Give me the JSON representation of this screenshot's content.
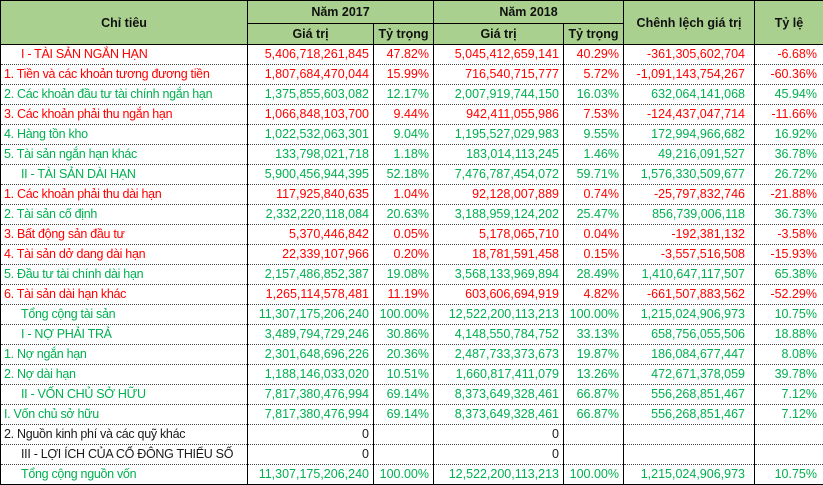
{
  "table": {
    "colors": {
      "red": "#ff0000",
      "green": "#00b050",
      "black": "#1a1a1a",
      "header_bg": "#a9d08e",
      "border": "#000000"
    },
    "header": {
      "col_label": "Chỉ tiêu",
      "group_2017": "Năm 2017",
      "group_2018": "Năm 2018",
      "subcols": [
        "Giá trị",
        "Tỷ trọng",
        "Giá trị",
        "Tỷ trọng"
      ],
      "col_diff": "Chênh lệch giá trị",
      "col_ratio": "Tỷ lệ"
    },
    "rows": [
      {
        "label": "I - TÀI SẢN NGẮN HẠN",
        "indent": true,
        "color": "red",
        "v2017": "5,406,718,261,845",
        "p2017": "47.82%",
        "v2018": "5,045,412,659,141",
        "p2018": "40.29%",
        "diff": "-361,305,602,704",
        "ratio": "-6.68%"
      },
      {
        "label": "1. Tiền và các khoản tương đương tiền",
        "indent": false,
        "color": "red",
        "v2017": "1,807,684,470,044",
        "p2017": "15.99%",
        "v2018": "716,540,715,777",
        "p2018": "5.72%",
        "diff": "-1,091,143,754,267",
        "ratio": "-60.36%"
      },
      {
        "label": "2. Các khoản đầu tư tài chính ngắn hạn",
        "indent": false,
        "color": "green",
        "v2017": "1,375,855,603,082",
        "p2017": "12.17%",
        "v2018": "2,007,919,744,150",
        "p2018": "16.03%",
        "diff": "632,064,141,068",
        "ratio": "45.94%"
      },
      {
        "label": "3. Các khoản phải thu ngắn hạn",
        "indent": false,
        "color": "red",
        "v2017": "1,066,848,103,700",
        "p2017": "9.44%",
        "v2018": "942,411,055,986",
        "p2018": "7.53%",
        "diff": "-124,437,047,714",
        "ratio": "-11.66%"
      },
      {
        "label": "4. Hàng tồn kho",
        "indent": false,
        "color": "green",
        "v2017": "1,022,532,063,301",
        "p2017": "9.04%",
        "v2018": "1,195,527,029,983",
        "p2018": "9.55%",
        "diff": "172,994,966,682",
        "ratio": "16.92%"
      },
      {
        "label": "5. Tài sản ngắn hạn khác",
        "indent": false,
        "color": "green",
        "v2017": "133,798,021,718",
        "p2017": "1.18%",
        "v2018": "183,014,113,245",
        "p2018": "1.46%",
        "diff": "49,216,091,527",
        "ratio": "36.78%"
      },
      {
        "label": "II - TÀI SẢN DÀI HẠN",
        "indent": true,
        "color": "green",
        "v2017": "5,900,456,944,395",
        "p2017": "52.18%",
        "v2018": "7,476,787,454,072",
        "p2018": "59.71%",
        "diff": "1,576,330,509,677",
        "ratio": "26.72%"
      },
      {
        "label": "1. Các khoản phải thu dài hạn",
        "indent": false,
        "color": "red",
        "v2017": "117,925,840,635",
        "p2017": "1.04%",
        "v2018": "92,128,007,889",
        "p2018": "0.74%",
        "diff": "-25,797,832,746",
        "ratio": "-21.88%"
      },
      {
        "label": "2. Tài sản cố định",
        "indent": false,
        "color": "green",
        "v2017": "2,332,220,118,084",
        "p2017": "20.63%",
        "v2018": "3,188,959,124,202",
        "p2018": "25.47%",
        "diff": "856,739,006,118",
        "ratio": "36.73%"
      },
      {
        "label": "3. Bất động sản đầu tư",
        "indent": false,
        "color": "red",
        "v2017": "5,370,446,842",
        "p2017": "0.05%",
        "v2018": "5,178,065,710",
        "p2018": "0.04%",
        "diff": "-192,381,132",
        "ratio": "-3.58%"
      },
      {
        "label": "4. Tài sản dở dang dài hạn",
        "indent": false,
        "color": "red",
        "v2017": "22,339,107,966",
        "p2017": "0.20%",
        "v2018": "18,781,591,458",
        "p2018": "0.15%",
        "diff": "-3,557,516,508",
        "ratio": "-15.93%"
      },
      {
        "label": "5. Đầu tư tài chính dài hạn",
        "indent": false,
        "color": "green",
        "v2017": "2,157,486,852,387",
        "p2017": "19.08%",
        "v2018": "3,568,133,969,894",
        "p2018": "28.49%",
        "diff": "1,410,647,117,507",
        "ratio": "65.38%"
      },
      {
        "label": "6. Tài sản dài hạn khác",
        "indent": false,
        "color": "red",
        "v2017": "1,265,114,578,481",
        "p2017": "11.19%",
        "v2018": "603,606,694,919",
        "p2018": "4.82%",
        "diff": "-661,507,883,562",
        "ratio": "-52.29%"
      },
      {
        "label": "Tổng cộng tài sản",
        "indent": true,
        "color": "green",
        "v2017": "11,307,175,206,240",
        "p2017": "100.00%",
        "v2018": "12,522,200,113,213",
        "p2018": "100.00%",
        "diff": "1,215,024,906,973",
        "ratio": "10.75%"
      },
      {
        "label": "I - NỢ PHẢI TRẢ",
        "indent": true,
        "color": "green",
        "v2017": "3,489,794,729,246",
        "p2017": "30.86%",
        "v2018": "4,148,550,784,752",
        "p2018": "33.13%",
        "diff": "658,756,055,506",
        "ratio": "18.88%"
      },
      {
        "label": "1. Nợ ngắn hạn",
        "indent": false,
        "color": "green",
        "v2017": "2,301,648,696,226",
        "p2017": "20.36%",
        "v2018": "2,487,733,373,673",
        "p2018": "19.87%",
        "diff": "186,084,677,447",
        "ratio": "8.08%"
      },
      {
        "label": "2. Nợ dài hạn",
        "indent": false,
        "color": "green",
        "v2017": "1,188,146,033,020",
        "p2017": "10.51%",
        "v2018": "1,660,817,411,079",
        "p2018": "13.26%",
        "diff": "472,671,378,059",
        "ratio": "39.78%"
      },
      {
        "label": "II - VỐN CHỦ SỞ HỮU",
        "indent": true,
        "color": "green",
        "v2017": "7,817,380,476,994",
        "p2017": "69.14%",
        "v2018": "8,373,649,328,461",
        "p2018": "66.87%",
        "diff": "556,268,851,467",
        "ratio": "7.12%"
      },
      {
        "label": "I. Vốn chủ sở hữu",
        "indent": false,
        "color": "green",
        "v2017": "7,817,380,476,994",
        "p2017": "69.14%",
        "v2018": "8,373,649,328,461",
        "p2018": "66.87%",
        "diff": "556,268,851,467",
        "ratio": "7.12%"
      },
      {
        "label": "2. Nguồn kinh phí và các quỹ khác",
        "indent": false,
        "color": "black",
        "v2017": "0",
        "p2017": "",
        "v2018": "0",
        "p2018": "",
        "diff": "",
        "ratio": ""
      },
      {
        "label": "III - LỢI ÍCH CỦA CỔ ĐÔNG THIỂU SỐ",
        "indent": true,
        "color": "black",
        "v2017": "0",
        "p2017": "",
        "v2018": "0",
        "p2018": "",
        "diff": "",
        "ratio": ""
      },
      {
        "label": "Tổng cộng nguồn vốn",
        "indent": true,
        "color": "green",
        "v2017": "11,307,175,206,240",
        "p2017": "100.00%",
        "v2018": "12,522,200,113,213",
        "p2018": "100.00%",
        "diff": "1,215,024,906,973",
        "ratio": "10.75%"
      }
    ]
  }
}
